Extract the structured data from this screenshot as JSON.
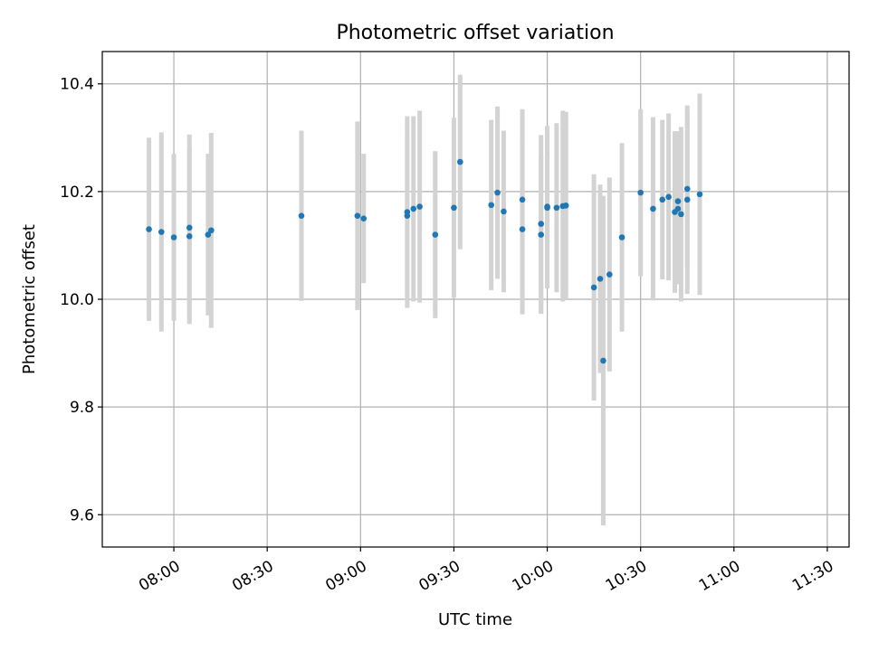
{
  "chart_data": {
    "type": "scatter",
    "title": "Photometric offset variation",
    "xlabel": "UTC time",
    "ylabel": "Photometric offset",
    "x_axis_type": "time",
    "xlim": [
      "07:37",
      "11:37"
    ],
    "ylim": [
      9.54,
      10.46
    ],
    "x_ticks": [
      "08:00",
      "08:30",
      "09:00",
      "09:30",
      "10:00",
      "10:30",
      "11:00",
      "11:30"
    ],
    "y_ticks": [
      "9.6",
      "9.8",
      "10.0",
      "10.2",
      "10.4"
    ],
    "grid": true,
    "legend": "none",
    "series": [
      {
        "marker_color": "#1f77b4",
        "errorbar_color": "#d3d3d3",
        "points": [
          {
            "t": "07:52",
            "y": 10.13,
            "err": 0.17
          },
          {
            "t": "07:56",
            "y": 10.125,
            "err": 0.185
          },
          {
            "t": "08:00",
            "y": 10.115,
            "err": 0.155
          },
          {
            "t": "08:05",
            "y": 10.133,
            "err": 0.173
          },
          {
            "t": "08:05",
            "y": 10.117,
            "err": 0.163
          },
          {
            "t": "08:11",
            "y": 10.12,
            "err": 0.15
          },
          {
            "t": "08:12",
            "y": 10.128,
            "err": 0.181
          },
          {
            "t": "08:41",
            "y": 10.155,
            "err": 0.158
          },
          {
            "t": "08:59",
            "y": 10.155,
            "err": 0.175
          },
          {
            "t": "09:01",
            "y": 10.15,
            "err": 0.12
          },
          {
            "t": "09:15",
            "y": 10.162,
            "err": 0.178
          },
          {
            "t": "09:15",
            "y": 10.155,
            "err": 0.15
          },
          {
            "t": "09:17",
            "y": 10.168,
            "err": 0.172
          },
          {
            "t": "09:19",
            "y": 10.172,
            "err": 0.178
          },
          {
            "t": "09:24",
            "y": 10.12,
            "err": 0.155
          },
          {
            "t": "09:30",
            "y": 10.17,
            "err": 0.167
          },
          {
            "t": "09:32",
            "y": 10.255,
            "err": 0.162
          },
          {
            "t": "09:42",
            "y": 10.175,
            "err": 0.158
          },
          {
            "t": "09:44",
            "y": 10.198,
            "err": 0.16
          },
          {
            "t": "09:46",
            "y": 10.163,
            "err": 0.15
          },
          {
            "t": "09:52",
            "y": 10.185,
            "err": 0.168
          },
          {
            "t": "09:52",
            "y": 10.13,
            "err": 0.158
          },
          {
            "t": "09:58",
            "y": 10.12,
            "err": 0.147
          },
          {
            "t": "09:58",
            "y": 10.14,
            "err": 0.165
          },
          {
            "t": "10:00",
            "y": 10.17,
            "err": 0.15
          },
          {
            "t": "10:00",
            "y": 10.172,
            "err": 0.15
          },
          {
            "t": "10:03",
            "y": 10.17,
            "err": 0.157
          },
          {
            "t": "10:05",
            "y": 10.173,
            "err": 0.177
          },
          {
            "t": "10:06",
            "y": 10.174,
            "err": 0.174
          },
          {
            "t": "10:15",
            "y": 10.022,
            "err": 0.21
          },
          {
            "t": "10:17",
            "y": 10.038,
            "err": 0.175
          },
          {
            "t": "10:18",
            "y": 9.886,
            "err": 0.306
          },
          {
            "t": "10:20",
            "y": 10.046,
            "err": 0.18
          },
          {
            "t": "10:24",
            "y": 10.115,
            "err": 0.175
          },
          {
            "t": "10:30",
            "y": 10.198,
            "err": 0.155
          },
          {
            "t": "10:34",
            "y": 10.168,
            "err": 0.17
          },
          {
            "t": "10:37",
            "y": 10.185,
            "err": 0.148
          },
          {
            "t": "10:39",
            "y": 10.19,
            "err": 0.155
          },
          {
            "t": "10:41",
            "y": 10.162,
            "err": 0.15
          },
          {
            "t": "10:42",
            "y": 10.182,
            "err": 0.13
          },
          {
            "t": "10:42",
            "y": 10.168,
            "err": 0.14
          },
          {
            "t": "10:43",
            "y": 10.158,
            "err": 0.162
          },
          {
            "t": "10:45",
            "y": 10.185,
            "err": 0.175
          },
          {
            "t": "10:45",
            "y": 10.205,
            "err": 0.145
          },
          {
            "t": "10:49",
            "y": 10.195,
            "err": 0.187
          }
        ]
      }
    ]
  }
}
